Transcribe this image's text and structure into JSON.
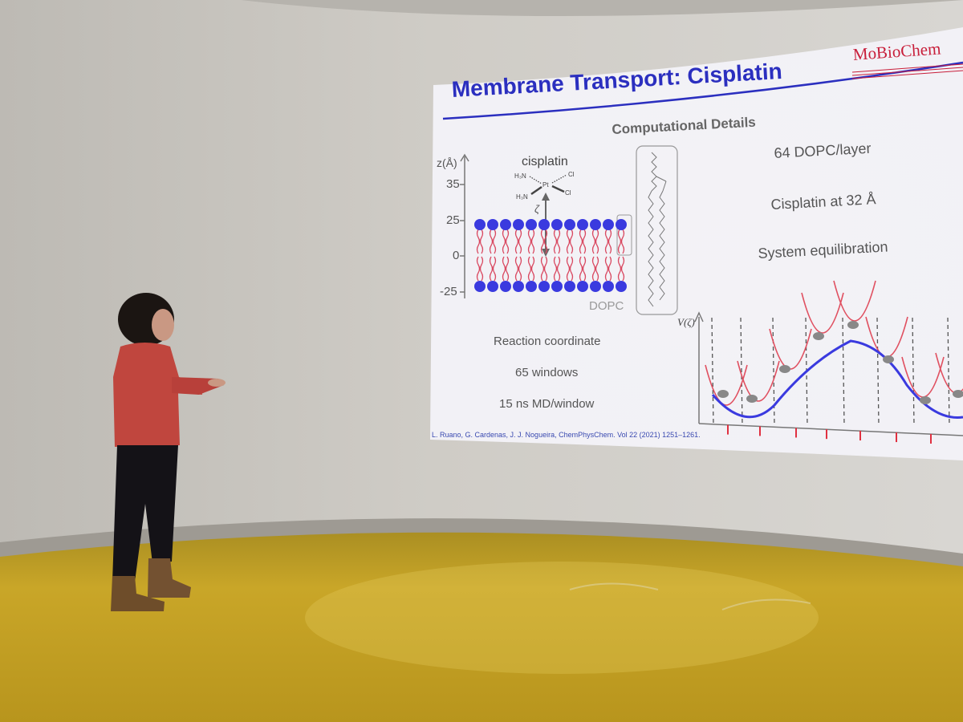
{
  "slide": {
    "title": "Membrane Transport: Cisplatin",
    "brand": "MoBioChem",
    "section_heading": "Computational Details",
    "details": [
      "64 DOPC/layer",
      "Cisplatin at 32 Å",
      "System equilibration"
    ],
    "coordinate_notes": [
      "Reaction coordinate",
      "65 windows",
      "15 ns MD/window"
    ],
    "axis": {
      "title": "z(Å)",
      "ticks": [
        "35",
        "25",
        "0",
        "-25"
      ]
    },
    "molecule_label": "cisplatin",
    "lipid_label": "DOPC",
    "reaction_coordinate_symbol": "ζ",
    "potential_axis_label": "V(ζ)",
    "citation": "L. Ruano, G. Cardenas, J. J. Nogueira, ChemPhysChem. Vol 22 (2021) 1251–1261."
  },
  "colors": {
    "title_blue": "#2b2fbf",
    "brand_red": "#c81e3a",
    "headgroup_blue": "#3a3adf",
    "tail_red": "#d94860",
    "floor_yellow": "#c8a42a",
    "sweater_red": "#c0463e"
  }
}
